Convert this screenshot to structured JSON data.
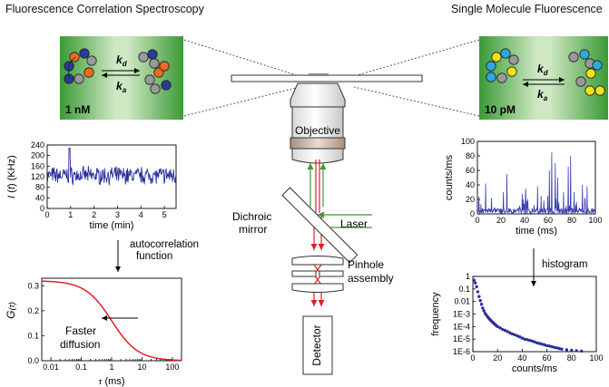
{
  "headings": {
    "fcs": "Fluorescence Correlation Spectroscopy",
    "smf": "Single Molecule Fluorescence"
  },
  "left_box": {
    "concentration": "1 nM",
    "kd": "k",
    "kd_sub": "d",
    "ka": "k",
    "ka_sub": "a"
  },
  "right_box": {
    "concentration": "10 pM",
    "kd": "k",
    "kd_sub": "d",
    "ka": "k",
    "ka_sub": "a"
  },
  "optics": {
    "objective": "Objective",
    "dichroic": [
      "Dichroic",
      "mirror"
    ],
    "laser": "Laser",
    "pinhole": [
      "Pinhole",
      "assembly"
    ],
    "detector": "Detector"
  },
  "steps": {
    "autocorrelation": [
      "autocorrelation",
      "function"
    ],
    "histogram": "histogram",
    "faster": [
      "Faster",
      "diffusion"
    ]
  },
  "colors": {
    "green": "#3a9a35",
    "red": "#e0202a",
    "blue_trace": "#2b2f9c",
    "mol_blue": "#283a9c",
    "mol_orange": "#ee6a1f",
    "mol_gray": "#9a9a9a",
    "mol_cyan": "#2fa8e0",
    "mol_yellow": "#f1e21a"
  },
  "chart_data": [
    {
      "type": "line",
      "name": "intensity trace",
      "xlabel": "time (min)",
      "ylabel": "I (t) (KHz)",
      "xlim": [
        0,
        5.5
      ],
      "ylim": [
        0,
        240
      ],
      "xticks": [
        0,
        1,
        2,
        3,
        4,
        5
      ],
      "yticks": [
        0,
        40,
        80,
        120,
        160,
        200,
        240
      ],
      "series": [
        {
          "color": "#2b2f9c",
          "mean": 125,
          "noise": 25,
          "peak_x": 0.95,
          "peak_y": 228
        }
      ]
    },
    {
      "type": "line",
      "name": "autocorrelation",
      "xlabel": "τ (ms)",
      "ylabel": "G(τ)",
      "xscale": "log",
      "xlim": [
        0.005,
        200
      ],
      "ylim": [
        0,
        0.33
      ],
      "xticks": [
        0.01,
        0.1,
        1,
        10,
        100
      ],
      "xtick_labels": [
        "0.01",
        "0.1",
        "1",
        "10",
        "100"
      ],
      "yticks": [
        0,
        0.1,
        0.2,
        0.3
      ],
      "ytick_labels": [
        "0.0",
        "0.1",
        "0.2",
        "0.3"
      ],
      "series": [
        {
          "color": "#e0202a",
          "amplitude": 0.32,
          "tau_d": 1.0
        }
      ]
    },
    {
      "type": "line",
      "name": "single molecule bursts",
      "xlabel": "time (ms)",
      "ylabel": "counts/ms",
      "xlim": [
        0,
        100
      ],
      "ylim": [
        0,
        100
      ],
      "xticks": [
        0,
        20,
        40,
        60,
        80,
        100
      ],
      "yticks": [
        0,
        20,
        40,
        60,
        80,
        100
      ],
      "series": [
        {
          "color": "#3a3fb0",
          "bursts": [
            [
              7,
              42
            ],
            [
              12,
              22
            ],
            [
              22,
              30
            ],
            [
              25,
              55
            ],
            [
              38,
              28
            ],
            [
              41,
              35
            ],
            [
              51,
              38
            ],
            [
              54,
              25
            ],
            [
              61,
              60
            ],
            [
              63,
              85
            ],
            [
              66,
              70
            ],
            [
              68,
              50
            ],
            [
              73,
              30
            ],
            [
              77,
              65
            ],
            [
              79,
              80
            ],
            [
              82,
              30
            ],
            [
              89,
              40
            ],
            [
              93,
              38
            ]
          ]
        }
      ]
    },
    {
      "type": "scatter",
      "name": "histogram",
      "xlabel": "counts/ms",
      "ylabel": "frequency",
      "yscale": "log",
      "xlim": [
        0,
        100
      ],
      "ylim": [
        1e-06,
        1
      ],
      "xticks": [
        0,
        20,
        40,
        60,
        80,
        100
      ],
      "yticks": [
        1,
        0.1,
        0.01,
        0.001,
        0.0001,
        1e-05,
        1e-06
      ],
      "ytick_labels": [
        "1",
        "0.1",
        "0.01",
        "1E-3",
        "1E-4",
        "1E-5",
        "1E-6"
      ],
      "series": [
        {
          "color": "#2b2f9c",
          "points": [
            [
              1,
              0.5
            ],
            [
              2,
              0.3
            ],
            [
              3,
              0.15
            ],
            [
              4,
              0.06
            ],
            [
              5,
              0.025
            ],
            [
              6,
              0.012
            ],
            [
              7,
              0.006
            ],
            [
              8,
              0.003
            ],
            [
              9,
              0.0018
            ],
            [
              10,
              0.0011
            ],
            [
              11,
              0.0008
            ],
            [
              12,
              0.0006
            ],
            [
              13,
              0.00045
            ],
            [
              14,
              0.00035
            ],
            [
              15,
              0.00028
            ],
            [
              16,
              0.00022
            ],
            [
              17,
              0.00018
            ],
            [
              18,
              0.00015
            ],
            [
              19,
              0.00012
            ],
            [
              20,
              0.0001
            ],
            [
              22,
              8e-05
            ],
            [
              24,
              6e-05
            ],
            [
              26,
              5e-05
            ],
            [
              28,
              4e-05
            ],
            [
              30,
              3.2e-05
            ],
            [
              32,
              2.6e-05
            ],
            [
              34,
              2.2e-05
            ],
            [
              36,
              1.8e-05
            ],
            [
              38,
              1.5e-05
            ],
            [
              40,
              1.2e-05
            ],
            [
              42,
              1e-05
            ],
            [
              44,
              9e-06
            ],
            [
              46,
              8e-06
            ],
            [
              48,
              7e-06
            ],
            [
              50,
              6e-06
            ],
            [
              52,
              5e-06
            ],
            [
              54,
              4.5e-06
            ],
            [
              56,
              4e-06
            ],
            [
              58,
              3.5e-06
            ],
            [
              60,
              3e-06
            ],
            [
              62,
              2.8e-06
            ],
            [
              64,
              2.5e-06
            ],
            [
              66,
              2.2e-06
            ],
            [
              68,
              2e-06
            ],
            [
              70,
              1.8e-06
            ],
            [
              72,
              1.6e-06
            ],
            [
              76,
              1.4e-06
            ],
            [
              80,
              1.3e-06
            ],
            [
              84,
              1.2e-06
            ],
            [
              88,
              1.1e-06
            ]
          ]
        }
      ]
    }
  ]
}
